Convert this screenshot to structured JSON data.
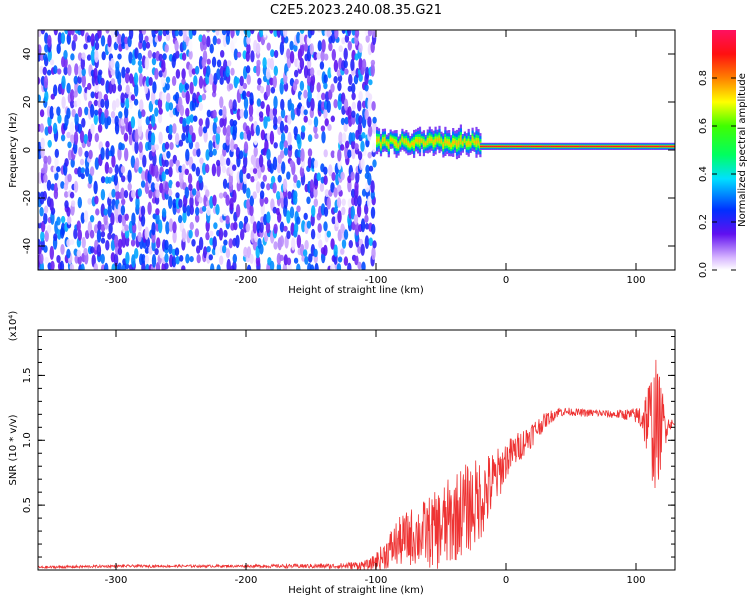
{
  "title": "C2E5.2023.240.08.35.G21",
  "chart_data": [
    {
      "type": "heatmap",
      "title": "",
      "xlabel": "Height of straight line (km)",
      "ylabel": "Frequency (Hz)",
      "xlim": [
        -360,
        130
      ],
      "ylim": [
        -50,
        50
      ],
      "x_ticks": [
        -300,
        -200,
        -100,
        0,
        100
      ],
      "y_ticks": [
        -40,
        -20,
        0,
        20,
        40
      ],
      "grid": false,
      "colorbar": {
        "label": "Normalized spectral amplitude",
        "range": [
          0,
          1
        ],
        "ticks": [
          "0.0",
          "0.2",
          "0.4",
          "0.6",
          "0.8"
        ]
      },
      "regions": [
        {
          "x_range": [
            -360,
            -100
          ],
          "y_range": [
            -50,
            50
          ],
          "content": "broadband noise",
          "amplitude_range": [
            0.0,
            0.35
          ]
        },
        {
          "x_range": [
            -100,
            -20
          ],
          "center_frequency": 3,
          "bandwidth": 10,
          "amplitude_range": [
            0.3,
            0.9
          ]
        },
        {
          "x_range": [
            -20,
            130
          ],
          "center_frequency": 1.5,
          "bandwidth": 3,
          "amplitude_peak": 1.0
        }
      ]
    },
    {
      "type": "line",
      "title": "",
      "xlabel": "Height of straight line (km)",
      "ylabel": "SNR (10 * v/v)",
      "y_multiplier": "(x10⁴)",
      "xlim": [
        -360,
        130
      ],
      "ylim": [
        0,
        1.85
      ],
      "x_ticks": [
        -300,
        -200,
        -100,
        0,
        100
      ],
      "y_ticks": [
        0.5,
        1.0,
        1.5
      ],
      "grid": false,
      "series": [
        {
          "color": "#ee3333",
          "x": [
            -360,
            -300,
            -200,
            -130,
            -105,
            -95,
            -85,
            -75,
            -65,
            -55,
            -45,
            -35,
            -25,
            -15,
            -5,
            0,
            10,
            20,
            30,
            40,
            50,
            60,
            70,
            80,
            90,
            100,
            105,
            110,
            115,
            120,
            125,
            130
          ],
          "y": [
            0.02,
            0.03,
            0.03,
            0.03,
            0.04,
            0.1,
            0.2,
            0.25,
            0.28,
            0.3,
            0.35,
            0.45,
            0.5,
            0.6,
            0.75,
            0.85,
            0.95,
            1.05,
            1.15,
            1.22,
            1.22,
            1.21,
            1.21,
            1.2,
            1.2,
            1.19,
            1.18,
            1.15,
            1.1,
            1.12,
            1.13,
            1.12
          ],
          "spread": [
            0.01,
            0.01,
            0.01,
            0.02,
            0.04,
            0.1,
            0.18,
            0.22,
            0.25,
            0.3,
            0.35,
            0.35,
            0.35,
            0.3,
            0.2,
            0.15,
            0.12,
            0.1,
            0.06,
            0.04,
            0.03,
            0.03,
            0.03,
            0.03,
            0.04,
            0.06,
            0.15,
            0.35,
            0.55,
            0.3,
            0.05,
            0.03
          ]
        }
      ]
    }
  ]
}
